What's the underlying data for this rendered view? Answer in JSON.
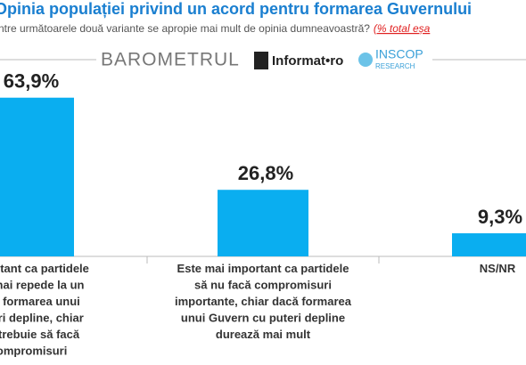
{
  "chart_data": {
    "type": "bar",
    "title": "Opinia populației privind un acord pentru formarea Guvernului",
    "subtitle": "ntre următoarele două variante se apropie mai mult de opinia dumneavoastră?",
    "subtitle_note": "(% total eșa",
    "brand": {
      "barometer": "BAROMETRUL",
      "partner": "Informat•ro",
      "pollster": "INSCOP",
      "pollster_sub": "RESEARCH"
    },
    "categories": [
      "important ca partidele\ncât mai repede la un\nntru formarea unui\nputeri depline, chiar\nare trebuie să facă\ncompromisuri",
      "Este mai important ca partidele\nsă nu facă compromisuri\nimportante, chiar dacă formarea\nunui Guvern cu puteri depline\ndurează mai mult",
      "NS/NR"
    ],
    "values": [
      63.9,
      26.8,
      9.3
    ],
    "value_labels": [
      "63,9%",
      "26,8%",
      "9,3%"
    ],
    "color": "#0aaef0"
  }
}
